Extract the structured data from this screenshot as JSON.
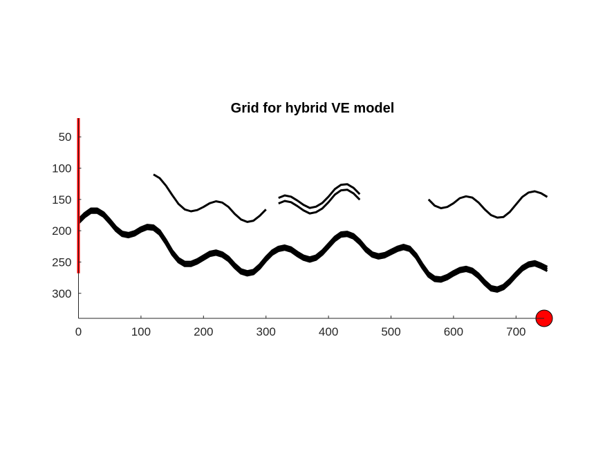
{
  "chart_data": {
    "type": "line",
    "title": "Grid for hybrid VE model",
    "xlabel": "",
    "ylabel": "",
    "xlim": [
      0,
      745
    ],
    "ylim": [
      340,
      20
    ],
    "y_reversed": true,
    "grid": false,
    "x_ticks": [
      0,
      100,
      200,
      300,
      400,
      500,
      600,
      700
    ],
    "y_ticks": [
      50,
      100,
      150,
      200,
      250,
      300
    ],
    "series": [
      {
        "style": "thick",
        "offsets": [
          -3,
          0,
          3
        ],
        "points": [
          [
            0,
            185
          ],
          [
            10,
            175
          ],
          [
            20,
            168
          ],
          [
            30,
            168
          ],
          [
            40,
            174
          ],
          [
            50,
            185
          ],
          [
            60,
            197
          ],
          [
            70,
            205
          ],
          [
            80,
            207
          ],
          [
            90,
            204
          ],
          [
            100,
            198
          ],
          [
            110,
            194
          ],
          [
            120,
            195
          ],
          [
            130,
            203
          ],
          [
            140,
            218
          ],
          [
            150,
            235
          ],
          [
            160,
            247
          ],
          [
            170,
            253
          ],
          [
            180,
            253
          ],
          [
            190,
            249
          ],
          [
            200,
            243
          ],
          [
            210,
            237
          ],
          [
            220,
            235
          ],
          [
            230,
            238
          ],
          [
            240,
            245
          ],
          [
            250,
            256
          ],
          [
            260,
            265
          ],
          [
            270,
            268
          ],
          [
            280,
            266
          ],
          [
            290,
            257
          ],
          [
            300,
            245
          ],
          [
            310,
            235
          ],
          [
            320,
            229
          ],
          [
            330,
            227
          ],
          [
            340,
            230
          ],
          [
            350,
            237
          ],
          [
            360,
            243
          ],
          [
            370,
            246
          ],
          [
            380,
            243
          ],
          [
            390,
            235
          ],
          [
            400,
            224
          ],
          [
            410,
            213
          ],
          [
            420,
            206
          ],
          [
            430,
            205
          ],
          [
            440,
            209
          ],
          [
            450,
            218
          ],
          [
            460,
            230
          ],
          [
            470,
            238
          ],
          [
            480,
            241
          ],
          [
            490,
            239
          ],
          [
            500,
            234
          ],
          [
            510,
            229
          ],
          [
            520,
            226
          ],
          [
            530,
            229
          ],
          [
            540,
            240
          ],
          [
            550,
            256
          ],
          [
            560,
            270
          ],
          [
            570,
            277
          ],
          [
            580,
            278
          ],
          [
            590,
            274
          ],
          [
            600,
            268
          ],
          [
            610,
            263
          ],
          [
            620,
            261
          ],
          [
            630,
            264
          ],
          [
            640,
            272
          ],
          [
            650,
            283
          ],
          [
            660,
            292
          ],
          [
            670,
            294
          ],
          [
            680,
            290
          ],
          [
            690,
            281
          ],
          [
            700,
            270
          ],
          [
            710,
            260
          ],
          [
            720,
            254
          ],
          [
            730,
            252
          ],
          [
            740,
            256
          ],
          [
            750,
            261
          ]
        ]
      },
      {
        "style": "thin",
        "offsets": [
          0
        ],
        "points": [
          [
            120,
            110
          ],
          [
            130,
            116
          ],
          [
            140,
            128
          ],
          [
            150,
            143
          ],
          [
            160,
            157
          ],
          [
            170,
            166
          ],
          [
            180,
            169
          ],
          [
            190,
            167
          ],
          [
            200,
            162
          ],
          [
            210,
            156
          ],
          [
            220,
            153
          ],
          [
            230,
            155
          ],
          [
            240,
            162
          ],
          [
            250,
            173
          ],
          [
            260,
            182
          ],
          [
            270,
            186
          ],
          [
            280,
            184
          ],
          [
            290,
            176
          ],
          [
            300,
            166
          ]
        ]
      },
      {
        "style": "thin",
        "offsets": [
          -4,
          4
        ],
        "points": [
          [
            320,
            152
          ],
          [
            330,
            148
          ],
          [
            340,
            150
          ],
          [
            350,
            156
          ],
          [
            360,
            163
          ],
          [
            370,
            168
          ],
          [
            380,
            166
          ],
          [
            390,
            160
          ],
          [
            400,
            150
          ],
          [
            410,
            138
          ],
          [
            420,
            131
          ],
          [
            430,
            130
          ],
          [
            440,
            136
          ],
          [
            450,
            146
          ]
        ]
      },
      {
        "style": "thin",
        "offsets": [
          0
        ],
        "points": [
          [
            560,
            150
          ],
          [
            570,
            160
          ],
          [
            580,
            164
          ],
          [
            590,
            162
          ],
          [
            600,
            156
          ],
          [
            610,
            148
          ],
          [
            620,
            145
          ],
          [
            630,
            147
          ],
          [
            640,
            155
          ],
          [
            650,
            166
          ],
          [
            660,
            175
          ],
          [
            670,
            179
          ],
          [
            680,
            178
          ],
          [
            690,
            170
          ],
          [
            700,
            158
          ],
          [
            710,
            146
          ],
          [
            720,
            139
          ],
          [
            730,
            137
          ],
          [
            740,
            140
          ],
          [
            750,
            146
          ]
        ]
      }
    ],
    "markers": [
      {
        "kind": "vertical-line",
        "x": 0,
        "y_from": 20,
        "y_to": 268,
        "color": "#ff0000"
      },
      {
        "kind": "point",
        "x": 745,
        "y": 340,
        "color": "#ff0000"
      }
    ],
    "colors": {
      "lines": "#000000",
      "highlight": "#ff0000",
      "axes": "#262626"
    }
  }
}
